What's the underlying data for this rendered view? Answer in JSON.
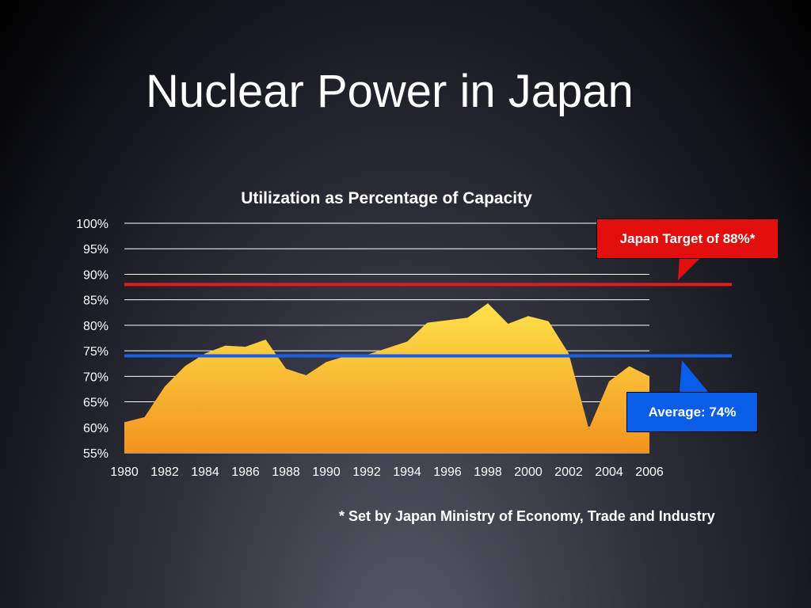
{
  "slide": {
    "title": "Nuclear Power in Japan",
    "footnote": "* Set by Japan Ministry of Economy, Trade and Industry"
  },
  "callouts": {
    "target": "Japan Target of 88%*",
    "average": "Average: 74%"
  },
  "colors": {
    "target_line": "#e31b1b",
    "average_line": "#1a5fe0",
    "area_top": "#ffe24a",
    "area_bottom": "#f3931f"
  },
  "chart_data": {
    "type": "area",
    "title": "Utilization as Percentage of Capacity",
    "xlabel": "",
    "ylabel": "",
    "x": [
      1980,
      1981,
      1982,
      1983,
      1984,
      1985,
      1986,
      1987,
      1988,
      1989,
      1990,
      1991,
      1992,
      1993,
      1994,
      1995,
      1996,
      1997,
      1998,
      1999,
      2000,
      2001,
      2002,
      2003,
      2004,
      2005,
      2006
    ],
    "series": [
      {
        "values": [
          61,
          62,
          68,
          72,
          74.5,
          76,
          75.8,
          77.2,
          71.5,
          70.2,
          72.8,
          74,
          74.2,
          75.5,
          76.8,
          80.5,
          81,
          81.5,
          84.3,
          80.3,
          81.8,
          80.8,
          74.5,
          59.7,
          69,
          72,
          70
        ]
      }
    ],
    "reference_lines": [
      {
        "label": "Japan Target of 88%*",
        "value": 88
      },
      {
        "label": "Average: 74%",
        "value": 74
      }
    ],
    "xticks": [
      "1980",
      "1982",
      "1984",
      "1986",
      "1988",
      "1990",
      "1992",
      "1994",
      "1996",
      "1998",
      "2000",
      "2002",
      "2004",
      "2006"
    ],
    "yticks": [
      "55%",
      "60%",
      "65%",
      "70%",
      "75%",
      "80%",
      "85%",
      "90%",
      "95%",
      "100%"
    ],
    "xlim": [
      1980,
      2006
    ],
    "ylim": [
      55,
      100
    ],
    "grid": true
  }
}
